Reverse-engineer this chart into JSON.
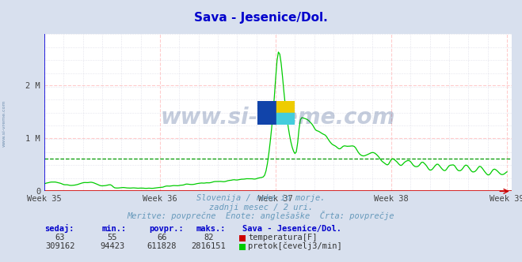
{
  "title": "Sava - Jesenice/Dol.",
  "title_color": "#0000cc",
  "bg_color": "#d8e0ee",
  "plot_bg_color": "#ffffff",
  "x_min": 0,
  "x_max": 336,
  "y_min": 0,
  "y_max": 2960000,
  "y_ticks": [
    0,
    1000000,
    2000000
  ],
  "y_tick_labels": [
    "0",
    "1 M",
    "2 M"
  ],
  "week_positions": [
    0,
    84,
    168,
    252,
    336
  ],
  "week_labels": [
    "Week 35",
    "Week 36",
    "Week 37",
    "Week 38",
    "Week 39"
  ],
  "flow_color": "#00cc00",
  "temp_color": "#cc0000",
  "avg_flow": 611828,
  "watermark": "www.si-vreme.com",
  "watermark_color": "#1a3a7a",
  "left_watermark": "www.si-vreme.com",
  "left_watermark_color": "#6688aa",
  "subtitle1": "Slovenija / reke in morje.",
  "subtitle2": "zadnji mesec / 2 uri.",
  "subtitle3": "Meritve: povprečne  Enote: anglešaške  Črta: povprečje",
  "subtitle_color": "#6699bb",
  "legend_title": "Sava - Jesenice/Dol.",
  "legend_title_color": "#0000cc",
  "stats_headers": [
    "sedaj:",
    "min.:",
    "povpr.:",
    "maks.:"
  ],
  "header_color": "#0000cc",
  "temp_stats": [
    "63",
    "55",
    "66",
    "82"
  ],
  "flow_stats": [
    "309162",
    "94423",
    "611828",
    "2816151"
  ],
  "stats_color": "#333333",
  "temp_label": "temperatura[F]",
  "flow_label": "pretok[čevelj3/min]",
  "yaxis_color": "#0000dd",
  "xaxis_color": "#cc0000",
  "grid_h_color": "#ffcccc",
  "grid_v_color": "#ffcccc",
  "grid_fine_color": "#ccccdd",
  "avg_line_color": "#009900"
}
